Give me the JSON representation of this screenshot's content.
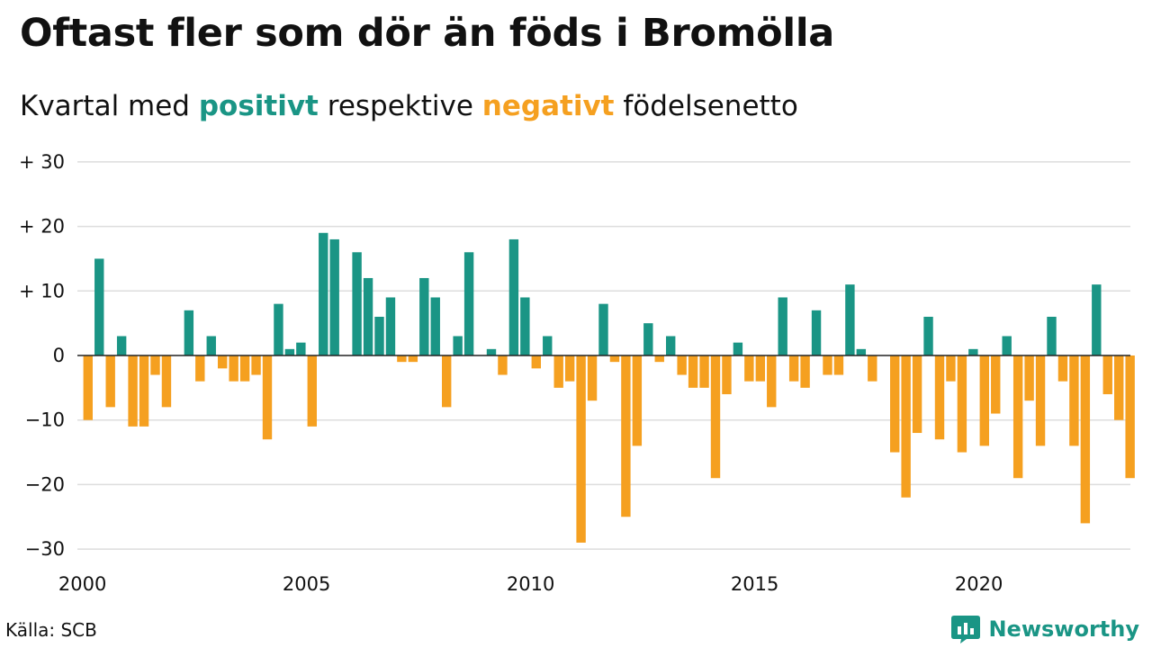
{
  "header": {
    "title": "Oftast fler som dör än föds i Bromölla",
    "subtitle_pre": "Kvartal med",
    "subtitle_positive": "positivt",
    "subtitle_mid": "respektive",
    "subtitle_negative": "negativt",
    "subtitle_post": "födelsenetto"
  },
  "footer": {
    "source": "Källa: SCB",
    "brand": "Newsworthy"
  },
  "colors": {
    "positive": "#1a9585",
    "negative": "#f5a020",
    "grid": "#dddddd",
    "text": "#111111"
  },
  "chart_data": {
    "type": "bar",
    "start_year": 2000,
    "periods_per_year": 4,
    "ylim": [
      -30,
      30
    ],
    "yticks": [
      30,
      20,
      10,
      0,
      -10,
      -20,
      -30
    ],
    "ytick_labels": [
      "+ 30",
      "+ 20",
      "+ 10",
      "0",
      "−10",
      "−20",
      "−30"
    ],
    "xtick_labels": [
      "2000",
      "2005",
      "2010",
      "2015",
      "2020"
    ],
    "grid": true,
    "values": [
      -10,
      15,
      -8,
      3,
      -11,
      -11,
      -3,
      -8,
      0,
      7,
      -4,
      3,
      -2,
      -4,
      -4,
      -3,
      -13,
      8,
      1,
      2,
      -11,
      19,
      18,
      0,
      16,
      12,
      6,
      9,
      -1,
      -1,
      12,
      9,
      -8,
      3,
      16,
      0,
      1,
      -3,
      18,
      9,
      -2,
      3,
      -5,
      -4,
      -29,
      -7,
      8,
      -1,
      -25,
      -14,
      5,
      -1,
      3,
      -3,
      -5,
      -5,
      -19,
      -6,
      2,
      -4,
      -4,
      -8,
      9,
      -4,
      -5,
      7,
      -3,
      -3,
      11,
      1,
      -4,
      0,
      -15,
      -22,
      -12,
      6,
      -13,
      -4,
      -15,
      1,
      -14,
      -9,
      3,
      -19,
      -7,
      -14,
      6,
      -4,
      -14,
      -26,
      11,
      -6,
      -10,
      -19
    ]
  }
}
